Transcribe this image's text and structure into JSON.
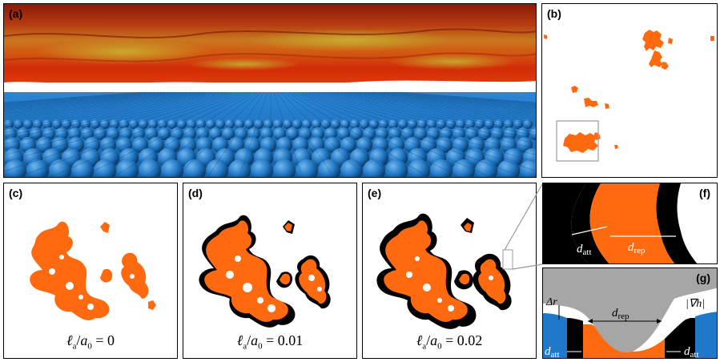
{
  "panels": {
    "a": {
      "label": "(a)"
    },
    "b": {
      "label": "(b)"
    },
    "c": {
      "label": "(c)",
      "caption_var": "ℓ",
      "caption_sub1": "a",
      "caption_slash": "/",
      "caption_var2": "a",
      "caption_sub2": "0",
      "caption_eq": " = ",
      "caption_value": "0"
    },
    "d": {
      "label": "(d)",
      "caption_var": "ℓ",
      "caption_sub1": "a",
      "caption_slash": "/",
      "caption_var2": "a",
      "caption_sub2": "0",
      "caption_eq": " = ",
      "caption_value": "0.01"
    },
    "e": {
      "label": "(e)",
      "caption_var": "ℓ",
      "caption_sub1": "a",
      "caption_slash": "/",
      "caption_var2": "a",
      "caption_sub2": "0",
      "caption_eq": " = ",
      "caption_value": "0.02"
    },
    "f": {
      "label": "(f)",
      "d_att": "d",
      "d_att_sub": "att",
      "d_rep": "d",
      "d_rep_sub": "rep"
    },
    "g": {
      "label": "(g)",
      "delta_r": "Δr",
      "grad_h": "|∇h|",
      "d_rep": "d",
      "d_rep_sub": "rep",
      "d_att_left": "d",
      "d_att_left_sub": "att",
      "d_att_right": "d",
      "d_att_right_sub": "att"
    }
  },
  "colors": {
    "orange": "#ff6a10",
    "blue": "#1f78c8",
    "black": "#000000",
    "gray": "#a6a6a6",
    "red_surface": "#c0300c",
    "yellow_surface": "#c8a028"
  }
}
